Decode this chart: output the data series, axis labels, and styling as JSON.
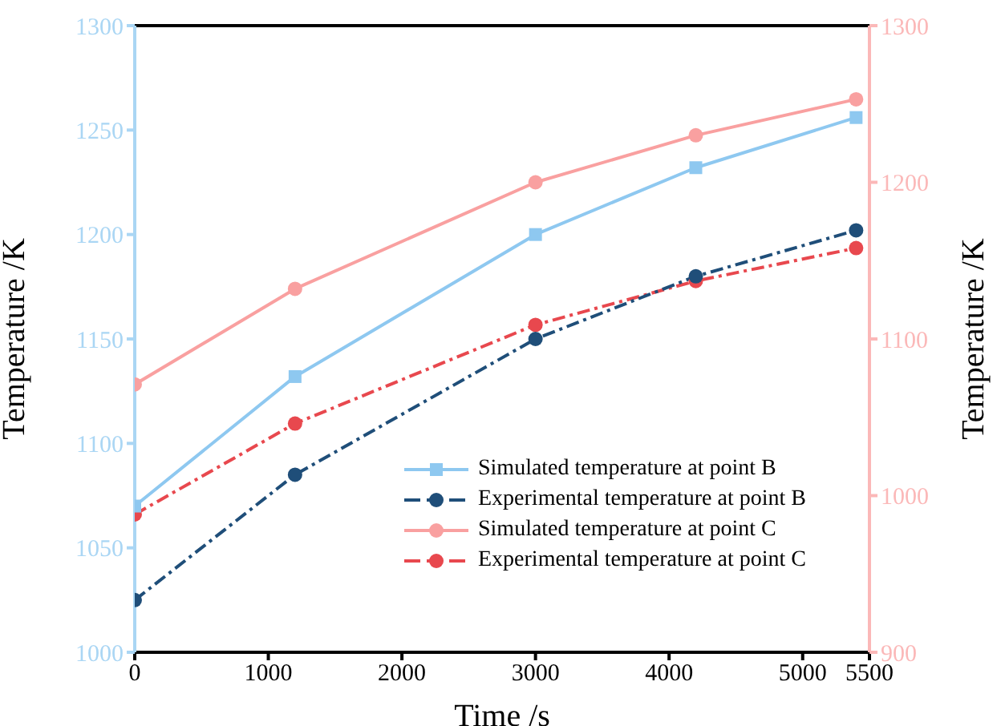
{
  "chart_data": {
    "type": "line",
    "xlabel": "Time /s",
    "ylabel": "Temperature /K",
    "y2label": "Temperature /K",
    "x": [
      0,
      1200,
      3000,
      4200,
      5400
    ],
    "series": [
      {
        "name": "Simulated temperature at point B",
        "color": "#8ec8f0",
        "marker": "square",
        "line_style": "solid",
        "values": [
          1070,
          1132,
          1200,
          1232,
          1256
        ]
      },
      {
        "name": "Experimental temperature at point B",
        "color": "#1f4e79",
        "marker": "circle",
        "line_style": "dashed",
        "values": [
          1025,
          1085,
          1150,
          1180,
          1202
        ]
      },
      {
        "name": "Simulated temperature at point C",
        "color": "#f9a0a0",
        "marker": "circle",
        "line_style": "solid",
        "axis": "y2",
        "values": [
          1071,
          1132,
          1200,
          1230,
          1253
        ]
      },
      {
        "name": "Experimental temperature at point C",
        "color": "#e8484e",
        "marker": "circle",
        "line_style": "dashed",
        "axis": "y2",
        "values": [
          988,
          1046,
          1109,
          1137,
          1158
        ]
      }
    ],
    "xlim": [
      0,
      5500
    ],
    "xticks": [
      0,
      1000,
      2000,
      3000,
      4000,
      5000,
      5500
    ],
    "ylim": [
      1000,
      1300
    ],
    "yticks": [
      1000,
      1050,
      1100,
      1150,
      1200,
      1250,
      1300
    ],
    "y2lim": [
      900,
      1300
    ],
    "y2ticks": [
      900,
      1000,
      1100,
      1200,
      1300
    ],
    "grid": false,
    "legend": "bottom right"
  }
}
